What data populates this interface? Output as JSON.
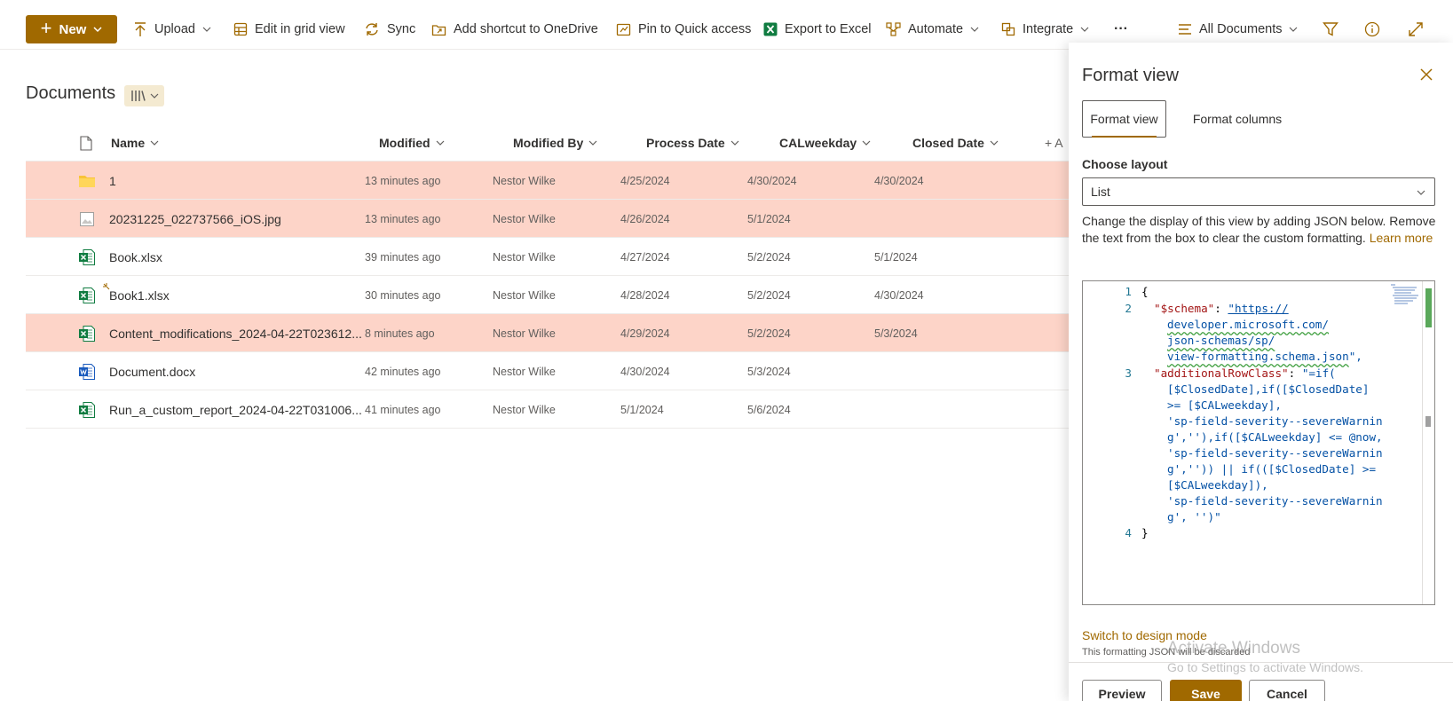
{
  "toolbar": {
    "new_label": "New",
    "upload_label": "Upload",
    "grid_label": "Edit in grid view",
    "sync_label": "Sync",
    "shortcut_label": "Add shortcut to OneDrive",
    "pin_label": "Pin to Quick access",
    "export_label": "Export to Excel",
    "automate_label": "Automate",
    "integrate_label": "Integrate",
    "more_label": "···",
    "view_label": "All Documents"
  },
  "library": {
    "title": "Documents"
  },
  "columns": {
    "name": "Name",
    "modified": "Modified",
    "modified_by": "Modified By",
    "process_date": "Process Date",
    "calweekday": "CALweekday",
    "closed_date": "Closed Date",
    "add_column": "+ A"
  },
  "rows": [
    {
      "name": "1",
      "modified": "13 minutes ago",
      "modified_by": "Nestor Wilke",
      "process_date": "4/25/2024",
      "calweekday": "4/30/2024",
      "closed_date": "4/30/2024",
      "icon": "folder-icon",
      "highlight": true
    },
    {
      "name": "20231225_022737566_iOS.jpg",
      "modified": "13 minutes ago",
      "modified_by": "Nestor Wilke",
      "process_date": "4/26/2024",
      "calweekday": "5/1/2024",
      "closed_date": "",
      "icon": "image-file-icon",
      "highlight": true
    },
    {
      "name": "Book.xlsx",
      "modified": "39 minutes ago",
      "modified_by": "Nestor Wilke",
      "process_date": "4/27/2024",
      "calweekday": "5/2/2024",
      "closed_date": "5/1/2024",
      "icon": "excel-file-icon",
      "highlight": false
    },
    {
      "name": "Book1.xlsx",
      "modified": "30 minutes ago",
      "modified_by": "Nestor Wilke",
      "process_date": "4/28/2024",
      "calweekday": "5/2/2024",
      "closed_date": "4/30/2024",
      "icon": "excel-file-icon",
      "highlight": false
    },
    {
      "name": "Content_modifications_2024-04-22T023612....",
      "modified": "8 minutes ago",
      "modified_by": "Nestor Wilke",
      "process_date": "4/29/2024",
      "calweekday": "5/2/2024",
      "closed_date": "5/3/2024",
      "icon": "excel-file-icon",
      "highlight": true
    },
    {
      "name": "Document.docx",
      "modified": "42 minutes ago",
      "modified_by": "Nestor Wilke",
      "process_date": "4/30/2024",
      "calweekday": "5/3/2024",
      "closed_date": "",
      "icon": "word-file-icon",
      "highlight": false
    },
    {
      "name": "Run_a_custom_report_2024-04-22T031006....",
      "modified": "41 minutes ago",
      "modified_by": "Nestor Wilke",
      "process_date": "5/1/2024",
      "calweekday": "5/6/2024",
      "closed_date": "",
      "icon": "excel-file-icon",
      "highlight": false
    }
  ],
  "panel": {
    "title": "Format view",
    "tab_view": "Format view",
    "tab_columns": "Format columns",
    "layout_label": "Choose layout",
    "layout_value": "List",
    "description": "Change the display of this view by adding JSON below. Remove the text from the box to clear the custom formatting.",
    "learn_more": "Learn more",
    "editor": {
      "line_numbers": [
        "1",
        "2",
        "3",
        "4"
      ],
      "l1": "{",
      "l2_key": "\"$schema\"",
      "l2_colon": ": ",
      "l2_a": "\"https://",
      "l2_b": "developer.microsoft.com/",
      "l2_c": "json-schemas/sp/",
      "l2_d": "view-formatting.schema.json",
      "l2_end": "\",",
      "l3_key": "\"additionalRowClass\"",
      "l3_colon": ": ",
      "l3_a": "\"=if(",
      "l3_b": "[$ClosedDate],if([$ClosedDate]",
      "l3_c": ">= [$CALweekday],",
      "l3_d": "'sp-field-severity--severeWarnin",
      "l3_e": "g',''),if([$CALweekday] <= @now,",
      "l3_f": "'sp-field-severity--severeWarnin",
      "l3_g": "g','')) || if(([$ClosedDate] >=",
      "l3_h": "[$CALweekday]),",
      "l3_i": "'sp-field-severity--severeWarnin",
      "l3_j": "g', '')\"",
      "l4": "}"
    },
    "switch_link": "Switch to design mode",
    "switch_note": "This formatting JSON will be discarded",
    "preview_label": "Preview",
    "save_label": "Save",
    "cancel_label": "Cancel"
  },
  "watermark": {
    "title": "Activate Windows",
    "subtitle": "Go to Settings to activate Windows."
  },
  "colors": {
    "accent": "#a06900",
    "highlight_row": "#fdd4c8"
  }
}
